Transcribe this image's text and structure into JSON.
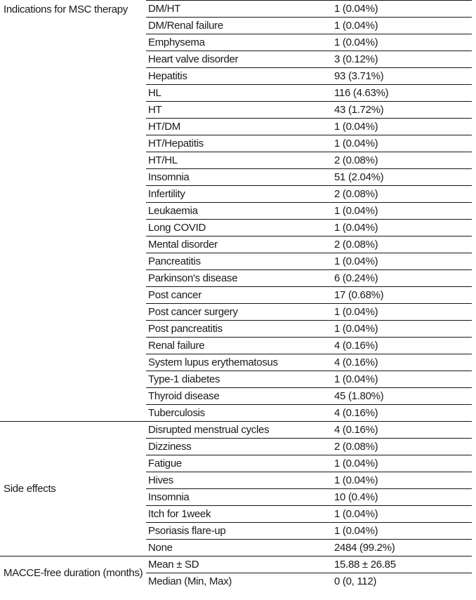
{
  "sections": [
    {
      "label": "Indications for MSC therapy",
      "rows": [
        {
          "label": "DM/HT",
          "value": "1 (0.04%)"
        },
        {
          "label": "DM/Renal failure",
          "value": "1 (0.04%)"
        },
        {
          "label": "Emphysema",
          "value": "1 (0.04%)"
        },
        {
          "label": "Heart valve disorder",
          "value": "3 (0.12%)"
        },
        {
          "label": "Hepatitis",
          "value": "93 (3.71%)"
        },
        {
          "label": "HL",
          "value": "116 (4.63%)"
        },
        {
          "label": "HT",
          "value": "43 (1.72%)"
        },
        {
          "label": "HT/DM",
          "value": "1 (0.04%)"
        },
        {
          "label": "HT/Hepatitis",
          "value": "1 (0.04%)"
        },
        {
          "label": "HT/HL",
          "value": "2 (0.08%)"
        },
        {
          "label": "Insomnia",
          "value": "51 (2.04%)"
        },
        {
          "label": "Infertility",
          "value": "2 (0.08%)"
        },
        {
          "label": "Leukaemia",
          "value": "1 (0.04%)"
        },
        {
          "label": "Long COVID",
          "value": "1 (0.04%)"
        },
        {
          "label": "Mental disorder",
          "value": "2 (0.08%)"
        },
        {
          "label": "Pancreatitis",
          "value": "1 (0.04%)"
        },
        {
          "label": "Parkinson's disease",
          "value": "6 (0.24%)"
        },
        {
          "label": "Post cancer",
          "value": "17 (0.68%)"
        },
        {
          "label": "Post cancer surgery",
          "value": "1 (0.04%)"
        },
        {
          "label": "Post pancreatitis",
          "value": "1 (0.04%)"
        },
        {
          "label": "Renal failure",
          "value": "4 (0.16%)"
        },
        {
          "label": "System lupus erythematosus",
          "value": "4 (0.16%)"
        },
        {
          "label": "Type-1 diabetes",
          "value": "1 (0.04%)"
        },
        {
          "label": "Thyroid disease",
          "value": "45 (1.80%)"
        },
        {
          "label": "Tuberculosis",
          "value": "4 (0.16%)"
        }
      ]
    },
    {
      "label": "Side effects",
      "rows": [
        {
          "label": "Disrupted menstrual cycles",
          "value": "4 (0.16%)"
        },
        {
          "label": "Dizziness",
          "value": "2 (0.08%)"
        },
        {
          "label": "Fatigue",
          "value": "1 (0.04%)"
        },
        {
          "label": "Hives",
          "value": "1 (0.04%)"
        },
        {
          "label": "Insomnia",
          "value": "10 (0.4%)"
        },
        {
          "label": "Itch for 1week",
          "value": "1 (0.04%)"
        },
        {
          "label": "Psoriasis flare-up",
          "value": "1 (0.04%)"
        },
        {
          "label": "None",
          "value": "2484 (99.2%)"
        }
      ]
    },
    {
      "label": "MACCE-free duration (months)",
      "rows": [
        {
          "label": "Mean ± SD",
          "value": "15.88 ± 26.85"
        },
        {
          "label": "Median (Min, Max)",
          "value": "0 (0, 112)"
        }
      ]
    }
  ]
}
